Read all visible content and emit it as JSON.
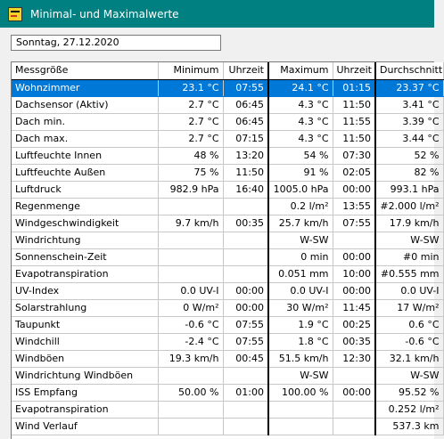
{
  "window": {
    "title": "Minimal- und Maximalwerte",
    "icon": "app-icon"
  },
  "date_field": {
    "value": "Sonntag, 27.12.2020"
  },
  "table": {
    "columns": [
      "Messgröße",
      "Minimum",
      "Uhrzeit",
      "Maximum",
      "Uhrzeit",
      "Durchschnitt"
    ],
    "selected_row": 0,
    "rows": [
      [
        "Wohnzimmer",
        "23.1 °C",
        "07:55",
        "24.1 °C",
        "01:15",
        "23.37 °C"
      ],
      [
        "Dachsensor (Aktiv)",
        "2.7 °C",
        "06:45",
        "4.3 °C",
        "11:50",
        "3.41 °C"
      ],
      [
        "Dach min.",
        "2.7 °C",
        "06:45",
        "4.3 °C",
        "11:55",
        "3.39 °C"
      ],
      [
        "Dach max.",
        "2.7 °C",
        "07:15",
        "4.3 °C",
        "11:50",
        "3.44 °C"
      ],
      [
        "Luftfeuchte Innen",
        "48 %",
        "13:20",
        "54 %",
        "07:30",
        "52 %"
      ],
      [
        "Luftfeuchte Außen",
        "75 %",
        "11:50",
        "91 %",
        "02:05",
        "82 %"
      ],
      [
        "Luftdruck",
        "982.9 hPa",
        "16:40",
        "1005.0 hPa",
        "00:00",
        "993.1 hPa"
      ],
      [
        "Regenmenge",
        "",
        "",
        "0.2 l/m²",
        "13:55",
        "#2.000 l/m²"
      ],
      [
        "Windgeschwindigkeit",
        "9.7 km/h",
        "00:35",
        "25.7 km/h",
        "07:55",
        "17.9 km/h"
      ],
      [
        "Windrichtung",
        "",
        "",
        "W-SW",
        "",
        "W-SW"
      ],
      [
        "Sonnenschein-Zeit",
        "",
        "",
        "0 min",
        "00:00",
        "#0 min"
      ],
      [
        "Evapotranspiration",
        "",
        "",
        "0.051 mm",
        "10:00",
        "#0.555 mm"
      ],
      [
        "UV-Index",
        "0.0 UV-I",
        "00:00",
        "0.0 UV-I",
        "00:00",
        "0.0 UV-I"
      ],
      [
        "Solarstrahlung",
        "0 W/m²",
        "00:00",
        "30 W/m²",
        "11:45",
        "17 W/m²"
      ],
      [
        "Taupunkt",
        "-0.6 °C",
        "07:55",
        "1.9 °C",
        "00:25",
        "0.6 °C"
      ],
      [
        "Windchill",
        "-2.4 °C",
        "07:55",
        "1.8 °C",
        "00:35",
        "-0.6 °C"
      ],
      [
        "Windböen",
        "19.3 km/h",
        "00:45",
        "51.5 km/h",
        "12:30",
        "32.1 km/h"
      ],
      [
        "Windrichtung Windböen",
        "",
        "",
        "W-SW",
        "",
        "W-SW"
      ],
      [
        "ISS Empfang",
        "50.00 %",
        "01:00",
        "100.00 %",
        "00:00",
        "95.52 %"
      ],
      [
        "Evapotranspiration",
        "",
        "",
        "",
        "",
        "0.252 l/m²"
      ],
      [
        "Wind Verlauf",
        "",
        "",
        "",
        "",
        "537.3 km"
      ]
    ]
  }
}
